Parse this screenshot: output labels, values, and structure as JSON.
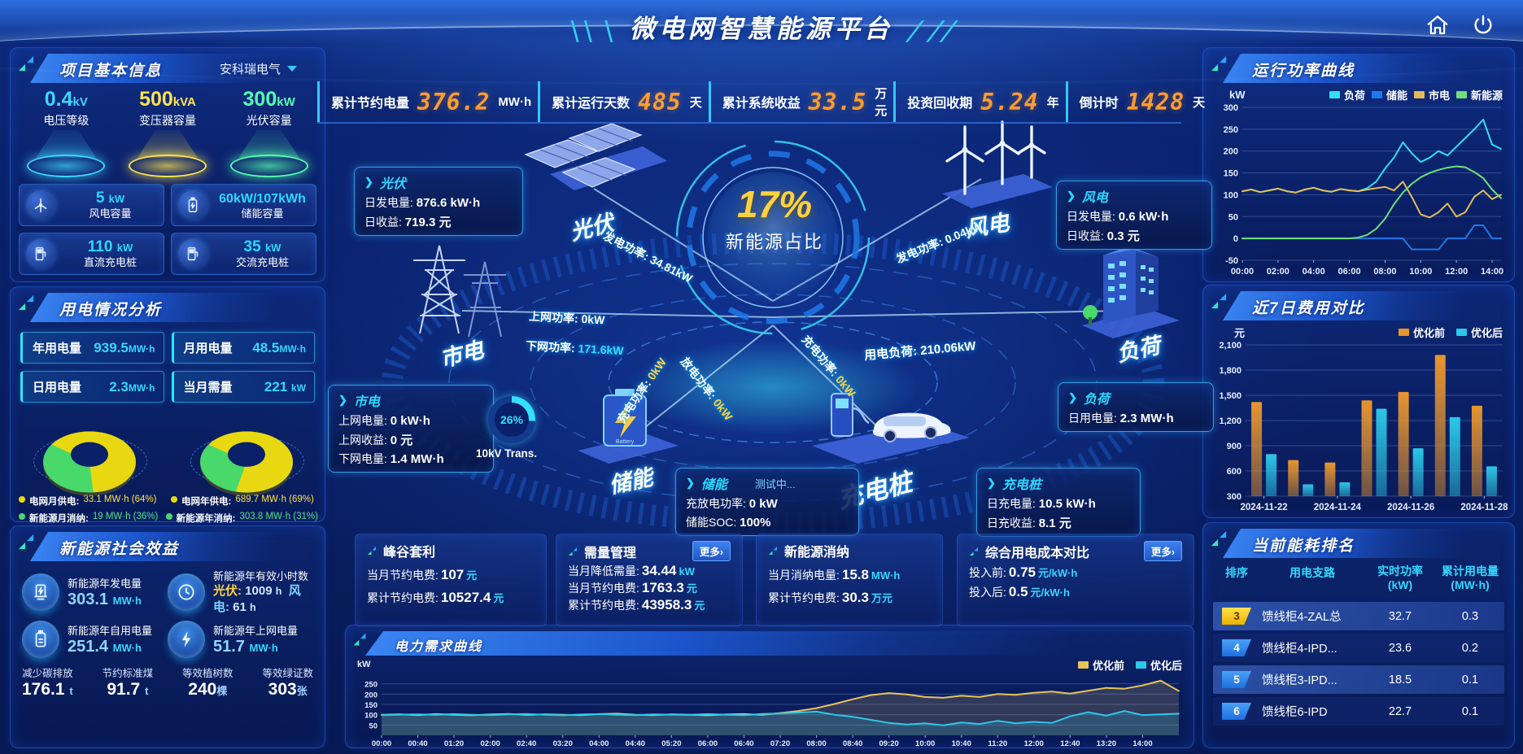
{
  "colors": {
    "accent_cyan": "#2bd9ff",
    "accent_orange": "#ff9d2e",
    "yellow": "#ffe34d",
    "green": "#54e08a",
    "blue": "#1e78e8",
    "panel_border": "#2d6ee6",
    "bg": "#0a2068"
  },
  "ui": {
    "chevron": "❯"
  },
  "header": {
    "title": "微电网智慧能源平台",
    "deco_left": "╲╲ ╲",
    "deco_right": "╱ ╱╱"
  },
  "topbar": {
    "items": [
      {
        "label": "累计节约电量",
        "value": "376.2",
        "unit": "MW·h"
      },
      {
        "label": "累计运行天数",
        "value": "485",
        "unit": "天"
      },
      {
        "label": "累计系统收益",
        "value": "33.5",
        "unit": "万元"
      },
      {
        "label": "投资回收期",
        "value": "5.24",
        "unit": "年"
      },
      {
        "label": "倒计时",
        "value": "1428",
        "unit": "天"
      }
    ]
  },
  "project": {
    "title": "项目基本信息",
    "company": "安科瑞电气",
    "pedestals": [
      {
        "value": "0.4",
        "unit": "kV",
        "label": "电压等级",
        "color": "#3fd6ff"
      },
      {
        "value": "500",
        "unit": "kVA",
        "label": "变压器容量",
        "color": "#ffe34d"
      },
      {
        "value": "300",
        "unit": "kW",
        "label": "光伏容量",
        "color": "#54ffb0"
      }
    ],
    "cards": [
      {
        "value": "5",
        "unit": "kW",
        "label": "风电容量"
      },
      {
        "value": "60kW/107kWh",
        "unit": "",
        "label": "储能容量"
      },
      {
        "value": "110",
        "unit": "kW",
        "label": "直流充电桩"
      },
      {
        "value": "35",
        "unit": "kW",
        "label": "交流充电桩"
      }
    ]
  },
  "usage": {
    "title": "用电情况分析",
    "stats": [
      {
        "label": "年用电量",
        "value": "939.5",
        "unit": "MW·h"
      },
      {
        "label": "月用电量",
        "value": "48.5",
        "unit": "MW·h"
      },
      {
        "label": "日用电量",
        "value": "2.3",
        "unit": "MW·h"
      },
      {
        "label": "当月需量",
        "value": "221",
        "unit": "kW"
      }
    ]
  },
  "eco": {
    "title": "新能源社会效益",
    "gen": {
      "label": "新能源年发电量",
      "value": "303.1",
      "unit": "MW·h"
    },
    "hours": {
      "label": "新能源年有效小时数",
      "pv_label": "光伏:",
      "pv_value": "1009",
      "pv_unit": "h",
      "wind_label": "风电:",
      "wind_value": "61",
      "wind_unit": "h"
    },
    "self": {
      "label": "新能源年自用电量",
      "value": "251.4",
      "unit": "MW·h"
    },
    "export": {
      "label": "新能源年上网电量",
      "value": "51.7",
      "unit": "MW·h"
    },
    "bottom": [
      {
        "label": "减少碳排放",
        "value": "176.1",
        "unit": "t"
      },
      {
        "label": "节约标准煤",
        "value": "91.7",
        "unit": "t"
      },
      {
        "label": "等效植树数",
        "value": "240",
        "unit": "棵"
      },
      {
        "label": "等效绿证数",
        "value": "303",
        "unit": "张"
      }
    ]
  },
  "center": {
    "percent": "17%",
    "percent_label": "新能源占比",
    "nodes": {
      "pv": "光伏",
      "wind": "风电",
      "grid": "市电",
      "load": "负荷",
      "storage": "储能",
      "charger": "充电桩"
    },
    "pv_box": {
      "title": "光伏",
      "l1": "日发电量:",
      "v1": "876.6 kW·h",
      "l2": "日收益:",
      "v2": "719.3 元"
    },
    "grid_box": {
      "title": "市电",
      "l1": "上网电量:",
      "v1": "0 kW·h",
      "l2": "上网收益:",
      "v2": "0 元",
      "l3": "下网电量:",
      "v3": "1.4 MW·h"
    },
    "wind_box": {
      "title": "风电",
      "l1": "日发电量:",
      "v1": "0.6 kW·h",
      "l2": "日收益:",
      "v2": "0.3 元"
    },
    "load_box": {
      "title": "负荷",
      "l1": "日用电量:",
      "v1": "2.3 MW·h"
    },
    "storage_box": {
      "title": "储能",
      "badge": "测试中...",
      "l1": "充放电功率:",
      "v1": "0 kW",
      "l2": "储能SOC:",
      "v2": "100%"
    },
    "charger_box": {
      "title": "充电桩",
      "l1": "日充电量:",
      "v1": "10.5 kW·h",
      "l2": "日充收益:",
      "v2": "8.1 元"
    },
    "flows": [
      {
        "label": "发电功率:",
        "value": "34.81kW"
      },
      {
        "label": "上网功率:",
        "value": "0kW"
      },
      {
        "label": "下网功率:",
        "value": "171.6kW"
      },
      {
        "label": "发电功率:",
        "value": "0.04kW"
      },
      {
        "label": "用电负荷:",
        "value": "210.06kW"
      },
      {
        "label": "充电功率:",
        "value": "0kW"
      },
      {
        "label": "放电功率:",
        "value": "0kW"
      },
      {
        "label": "充电功率:",
        "value": "0kW"
      }
    ]
  },
  "kpi": [
    {
      "title": "峰谷套利",
      "rows": [
        {
          "label": "当月节约电费:",
          "value": "107",
          "unit": "元"
        },
        {
          "label": "累计节约电费:",
          "value": "10527.4",
          "unit": "元"
        }
      ]
    },
    {
      "title": "需量管理",
      "more": "更多›",
      "rows": [
        {
          "label": "当月降低需量:",
          "value": "34.44",
          "unit": "kW"
        },
        {
          "label": "当月节约电费:",
          "value": "1763.3",
          "unit": "元"
        },
        {
          "label": "累计节约电费:",
          "value": "43958.3",
          "unit": "元"
        }
      ]
    },
    {
      "title": "新能源消纳",
      "rows": [
        {
          "label": "当月消纳电量:",
          "value": "15.8",
          "unit": "MW·h"
        },
        {
          "label": "累计节约电费:",
          "value": "30.3",
          "unit": "万元"
        }
      ]
    },
    {
      "title": "综合用电成本对比",
      "more": "更多›",
      "rows": [
        {
          "label": "投入前:",
          "value": "0.75",
          "unit": "元/kW·h"
        },
        {
          "label": "投入后:",
          "value": "0.5",
          "unit": "元/kW·h"
        }
      ]
    }
  ],
  "panels": {
    "power_curve_title": "运行功率曲线",
    "cost_compare_title": "近7日费用对比",
    "ranking_title": "当前能耗排名",
    "demand_title": "电力需求曲线"
  },
  "ranking": {
    "h1": "排序",
    "h2": "用电支路",
    "h3a": "实时功率",
    "h3b": "(kW)",
    "h4a": "累计用电量",
    "h4b": "(MW·h)",
    "rows": [
      {
        "rank": "3",
        "branch": "馈线柜4-ZAL总",
        "power": "32.7",
        "energy": "0.3"
      },
      {
        "rank": "4",
        "branch": "馈线柜4-IPD...",
        "power": "23.6",
        "energy": "0.2"
      },
      {
        "rank": "5",
        "branch": "馈线柜3-IPD...",
        "power": "18.5",
        "energy": "0.1"
      },
      {
        "rank": "6",
        "branch": "馈线柜6-IPD",
        "power": "22.7",
        "energy": "0.1"
      }
    ]
  },
  "chart_data": [
    {
      "id": "power-curve",
      "type": "line",
      "title": "运行功率曲线",
      "ylabel": "kW",
      "ylim": [
        -50,
        300
      ],
      "yticks": [
        -50,
        0,
        50,
        100,
        150,
        200,
        250,
        300
      ],
      "ytick_labels": [
        "-50",
        "0",
        "50",
        "100",
        "150",
        "200",
        "250",
        "300"
      ],
      "x_ticks": [
        "00:00",
        "02:00",
        "04:00",
        "06:00",
        "08:00",
        "10:00",
        "12:00",
        "14:00"
      ],
      "x_tick_step": 2,
      "x_step": 0.5,
      "x_domain": 14.5,
      "grid": true,
      "legend_position": "top",
      "series": [
        {
          "name": "负荷",
          "color": "#2fe0f0",
          "values": [
            108,
            112,
            106,
            110,
            114,
            108,
            105,
            112,
            116,
            110,
            107,
            113,
            110,
            108,
            115,
            130,
            160,
            185,
            220,
            195,
            175,
            185,
            200,
            190,
            210,
            230,
            250,
            272,
            215,
            205
          ]
        },
        {
          "name": "储能",
          "color": "#1e7ae8",
          "values": [
            0,
            0,
            0,
            0,
            0,
            0,
            0,
            0,
            0,
            0,
            0,
            0,
            0,
            0,
            0,
            0,
            0,
            0,
            0,
            -25,
            -25,
            -25,
            -25,
            0,
            0,
            0,
            30,
            30,
            0,
            0
          ]
        },
        {
          "name": "市电",
          "color": "#e2bc5a",
          "values": [
            108,
            112,
            106,
            110,
            114,
            108,
            105,
            112,
            116,
            110,
            107,
            113,
            110,
            108,
            112,
            115,
            118,
            110,
            130,
            95,
            55,
            48,
            60,
            80,
            50,
            60,
            95,
            110,
            90,
            100
          ]
        },
        {
          "name": "新能源",
          "color": "#6fe07a",
          "values": [
            0,
            0,
            0,
            0,
            0,
            0,
            0,
            0,
            0,
            0,
            0,
            0,
            0,
            2,
            8,
            22,
            45,
            78,
            105,
            125,
            140,
            150,
            157,
            162,
            165,
            163,
            152,
            138,
            112,
            92
          ]
        }
      ]
    },
    {
      "id": "cost-compare",
      "type": "bar",
      "title": "近7日费用对比",
      "ylabel": "元",
      "ylim": [
        300,
        2100
      ],
      "yticks": [
        300,
        600,
        900,
        1200,
        1500,
        1800,
        2100
      ],
      "ytick_labels": [
        "300",
        "600",
        "900",
        "1,200",
        "1,500",
        "1,800",
        "2,100"
      ],
      "categories": [
        "2024-11-22",
        "2024-11-23",
        "2024-11-24",
        "2024-11-25",
        "2024-11-26",
        "2024-11-27",
        "2024-11-28"
      ],
      "x_label_every": 2,
      "grid": true,
      "legend_position": "top",
      "series": [
        {
          "name": "优化前",
          "color": "#e8952e",
          "values": [
            1420,
            730,
            700,
            1440,
            1540,
            1980,
            1375
          ]
        },
        {
          "name": "优化后",
          "color": "#2cc8e8",
          "values": [
            800,
            440,
            465,
            1340,
            870,
            1240,
            655
          ]
        }
      ]
    },
    {
      "id": "demand-curve",
      "type": "line",
      "title": "电力需求曲线",
      "ylabel": "kW",
      "ylim": [
        0,
        300
      ],
      "yticks": [
        50,
        100,
        150,
        200,
        250
      ],
      "ytick_labels": [
        "50",
        "100",
        "150",
        "200",
        "250"
      ],
      "x_ticks": [
        "00:00",
        "00:40",
        "01:20",
        "02:00",
        "02:40",
        "03:20",
        "04:00",
        "04:40",
        "05:20",
        "06:00",
        "06:40",
        "07:20",
        "08:00",
        "08:40",
        "09:20",
        "10:00",
        "10:40",
        "11:20",
        "12:00",
        "12:40",
        "13:20",
        "14:00"
      ],
      "x_tick_step": 0.6667,
      "x_step": 0.3333,
      "x_domain": 14.667,
      "area": true,
      "grid": true,
      "legend_position": "top-right",
      "series": [
        {
          "name": "优化前",
          "color": "#e8c35a",
          "values": [
            100,
            102,
            98,
            103,
            100,
            97,
            101,
            104,
            99,
            102,
            100,
            98,
            103,
            105,
            100,
            98,
            102,
            100,
            97,
            101,
            103,
            99,
            108,
            118,
            132,
            152,
            175,
            195,
            205,
            198,
            186,
            182,
            192,
            186,
            200,
            196,
            206,
            212,
            202,
            216,
            230,
            226,
            242,
            265,
            215
          ]
        },
        {
          "name": "优化后",
          "color": "#2cc8e8",
          "values": [
            98,
            100,
            102,
            99,
            103,
            100,
            98,
            102,
            104,
            100,
            97,
            101,
            103,
            100,
            98,
            102,
            100,
            99,
            103,
            100,
            98,
            104,
            106,
            110,
            115,
            100,
            90,
            75,
            60,
            52,
            58,
            48,
            62,
            55,
            70,
            58,
            65,
            60,
            92,
            112,
            95,
            118,
            98,
            102,
            105
          ]
        }
      ]
    },
    {
      "id": "monthly-energy-donut",
      "type": "pie",
      "labels": [
        "电网月供电:",
        "新能源月消纳:"
      ],
      "values": [
        64,
        36
      ],
      "value_labels": [
        "33.1 MW·h (64%)",
        "19 MW·h (36%)"
      ],
      "colors": [
        "#e8d812",
        "#49d86a"
      ]
    },
    {
      "id": "yearly-energy-donut",
      "type": "pie",
      "labels": [
        "电网年供电:",
        "新能源年消纳:"
      ],
      "values": [
        69,
        31
      ],
      "value_labels": [
        "689.7 MW·h (69%)",
        "303.8 MW·h (31%)"
      ],
      "colors": [
        "#e8d812",
        "#49d86a"
      ]
    },
    {
      "id": "transformer-load-gauge",
      "type": "pie",
      "labels": [
        "10kV Trans."
      ],
      "values": [
        26
      ],
      "text": "26%",
      "colors": [
        "#35e0ff"
      ]
    }
  ]
}
